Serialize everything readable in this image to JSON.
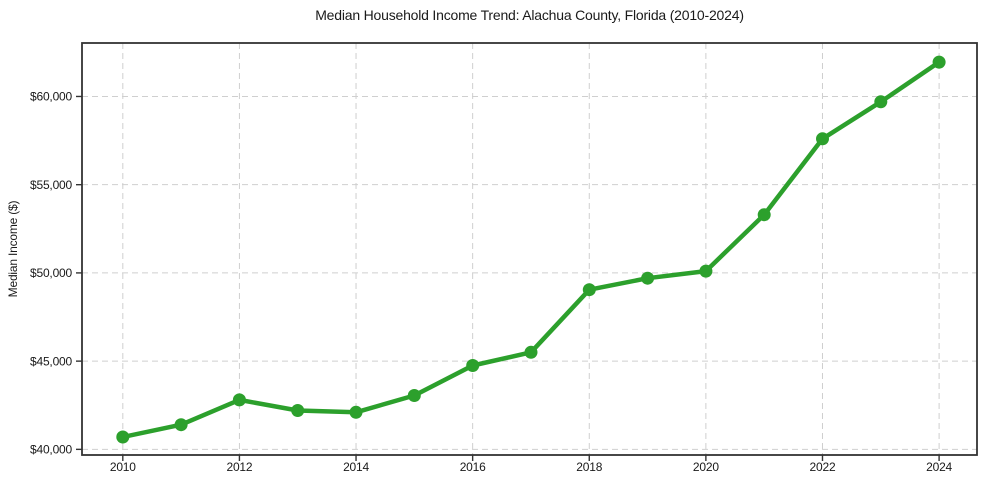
{
  "figure": {
    "title": "Median Household Income Trend: Alachua County, Florida (2010-2024)"
  },
  "chart_data": {
    "type": "line",
    "title": "Median Household Income Trend: Alachua County, Florida (2010-2024)",
    "xlabel": "",
    "ylabel": "Median Income ($)",
    "x": [
      2010,
      2011,
      2012,
      2013,
      2014,
      2015,
      2016,
      2017,
      2018,
      2019,
      2020,
      2021,
      2022,
      2023,
      2024
    ],
    "series": [
      {
        "name": "Median household income",
        "values": [
          40700,
          41400,
          42800,
          42200,
          42100,
          43050,
          44750,
          45500,
          49050,
          49700,
          50100,
          53300,
          57600,
          59700,
          61950
        ]
      }
    ],
    "xticks": [
      2010,
      2012,
      2014,
      2016,
      2018,
      2020,
      2022,
      2024
    ],
    "xtick_labels": [
      "2010",
      "2012",
      "2014",
      "2016",
      "2018",
      "2020",
      "2022",
      "2024"
    ],
    "yticks": [
      40000,
      45000,
      50000,
      55000,
      60000
    ],
    "ytick_labels": [
      "$40,000",
      "$45,000",
      "$50,000",
      "$55,000",
      "$60,000"
    ],
    "xlim": [
      2009.3,
      2024.65
    ],
    "ylim": [
      39680,
      63030
    ],
    "grid": "dashed-both-axes",
    "legend_position": "none",
    "colors": {
      "line": "#2ca02c",
      "marker": "#2ca02c",
      "grid": "#cfcfcf",
      "frame": "#333333",
      "text": "#1a1a1a",
      "background": "#ffffff"
    }
  }
}
